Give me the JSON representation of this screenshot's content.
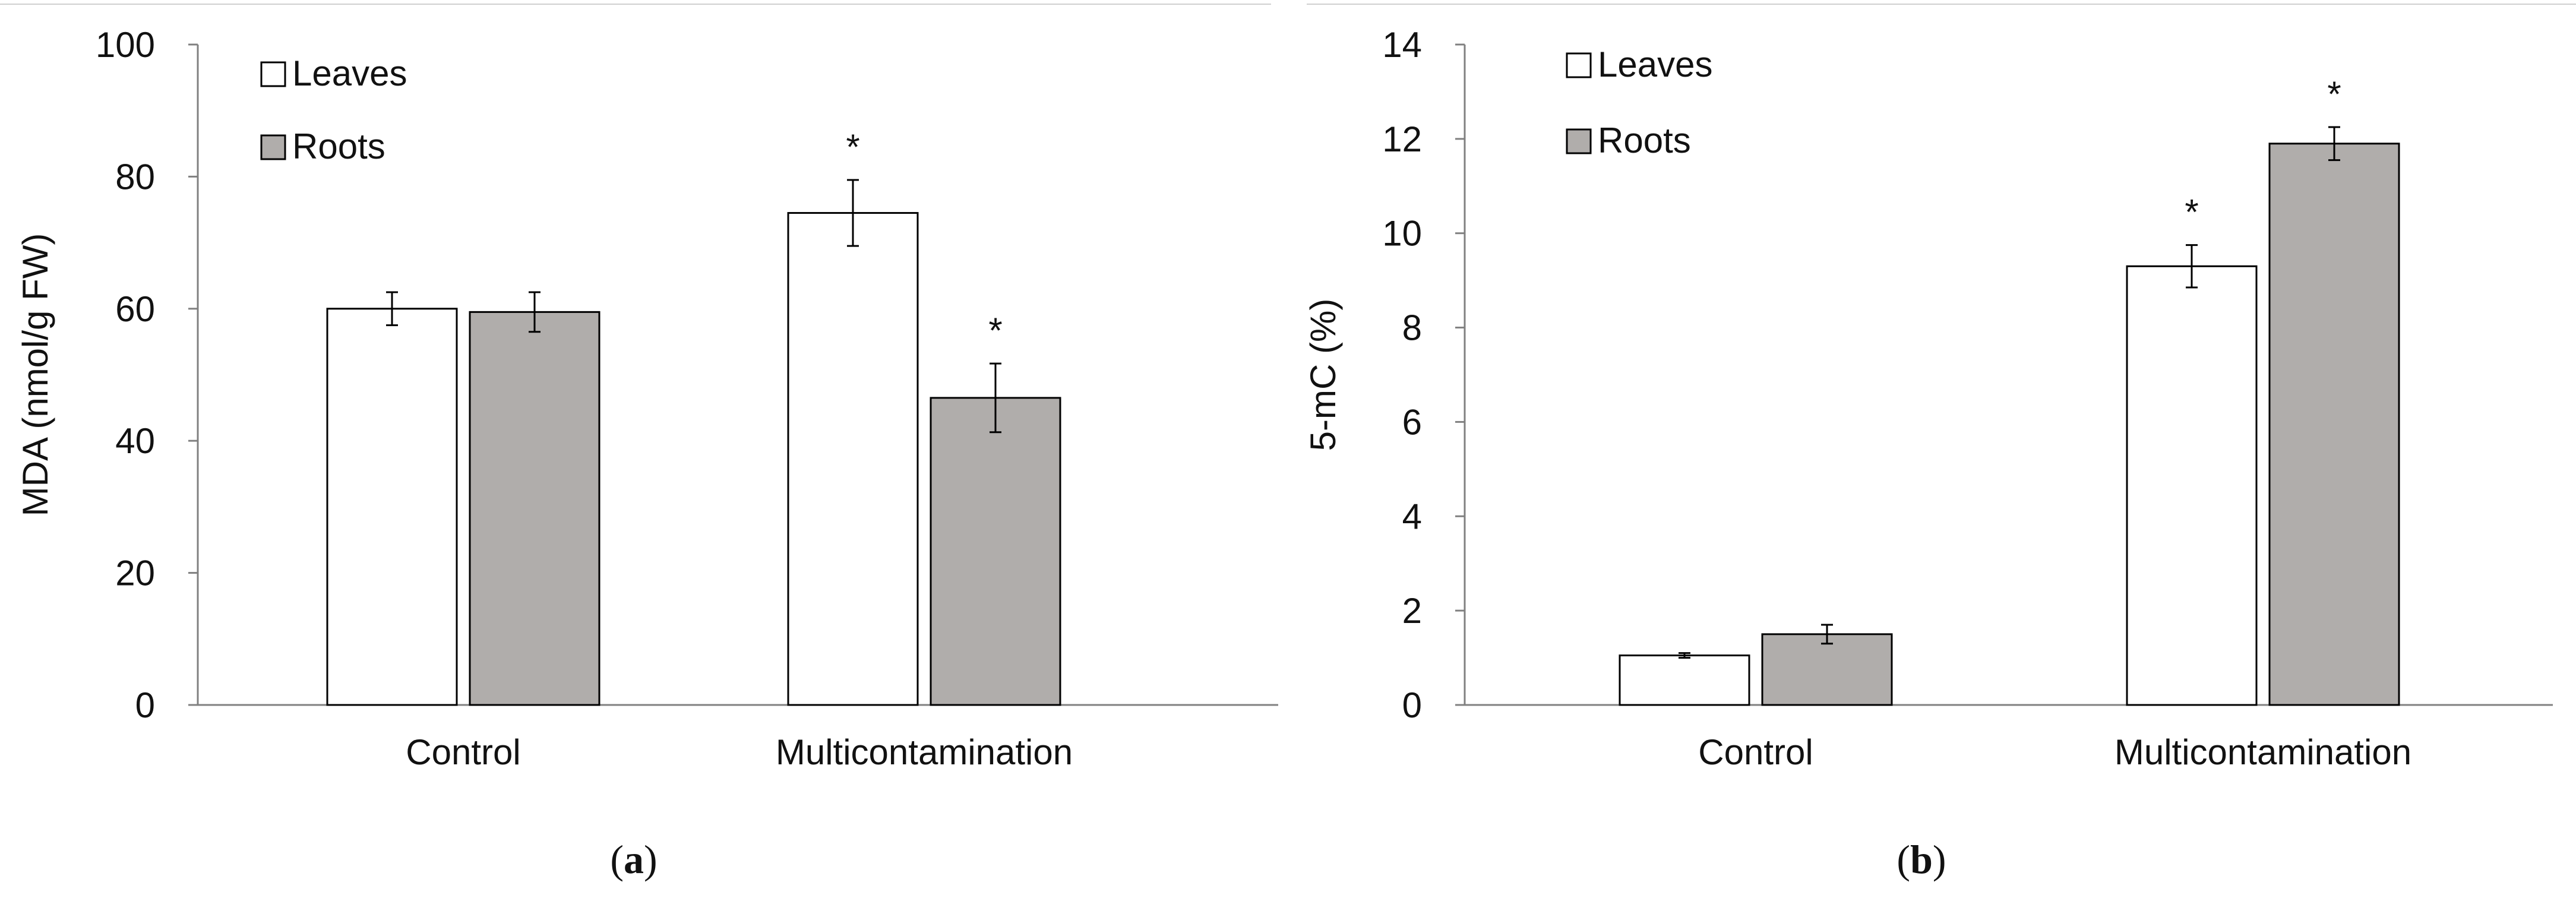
{
  "chart_data": [
    {
      "type": "bar",
      "panel_label": "(a)",
      "categories": [
        "Control",
        "Multicontamination"
      ],
      "series": [
        {
          "name": "Leaves",
          "values": [
            60,
            74.5
          ],
          "errors": [
            2.5,
            5
          ],
          "color": "#ffffff"
        },
        {
          "name": "Roots",
          "values": [
            59.5,
            46.5
          ],
          "errors": [
            3,
            5.2
          ],
          "color": "#b0adab"
        }
      ],
      "significance": [
        [
          false,
          true
        ],
        [
          false,
          true
        ]
      ],
      "significance_mark": "*",
      "title": "",
      "xlabel": "",
      "ylabel": "MDA (nmol/g FW)",
      "ylim": [
        0,
        100
      ],
      "yticks": [
        0,
        20,
        40,
        60,
        80,
        100
      ],
      "grid": false,
      "legend_position": "top-left"
    },
    {
      "type": "bar",
      "panel_label": "(b)",
      "categories": [
        "Control",
        "Multicontamination"
      ],
      "series": [
        {
          "name": "Leaves",
          "values": [
            1.05,
            9.3
          ],
          "errors": [
            0.05,
            0.45
          ],
          "color": "#ffffff"
        },
        {
          "name": "Roots",
          "values": [
            1.5,
            11.9
          ],
          "errors": [
            0.2,
            0.35
          ],
          "color": "#b0adab"
        }
      ],
      "significance": [
        [
          false,
          true
        ],
        [
          false,
          true
        ]
      ],
      "significance_mark": "*",
      "title": "",
      "xlabel": "",
      "ylabel": "5-mC (%)",
      "ylim": [
        0,
        14
      ],
      "yticks": [
        0,
        2,
        4,
        6,
        8,
        10,
        12,
        14
      ],
      "grid": false,
      "legend_position": "top-left"
    }
  ]
}
